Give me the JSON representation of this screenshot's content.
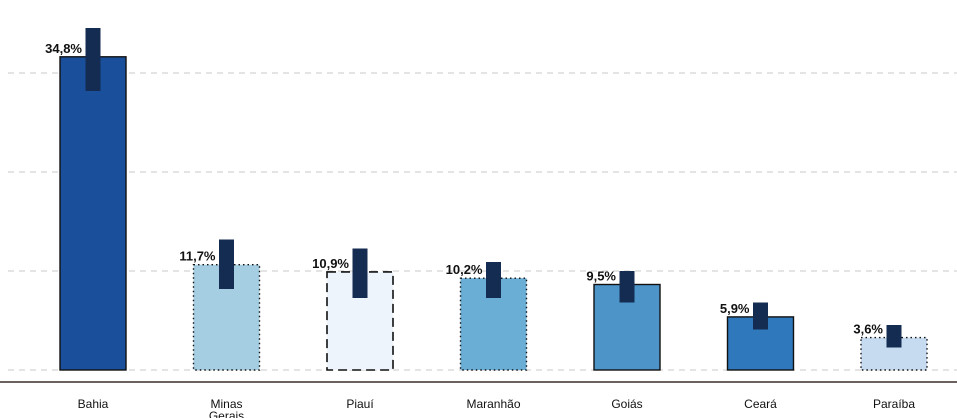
{
  "chart_data": {
    "type": "bar",
    "title": "",
    "xlabel": "",
    "ylabel": "",
    "ylim": [
      0,
      37
    ],
    "grid": true,
    "categories": [
      "Bahia",
      "Minas Gerais",
      "Piauí",
      "Maranhão",
      "Goiás",
      "Ceará",
      "Paraíba"
    ],
    "values": [
      34.8,
      11.7,
      10.9,
      10.2,
      9.5,
      5.9,
      3.6
    ],
    "value_labels": [
      "34,8%",
      "11,7%",
      "10,9%",
      "10,2%",
      "9,5%",
      "5,9%",
      "3,6%"
    ],
    "error_bars": [
      {
        "low": 31.0,
        "high": 38.0
      },
      {
        "low": 9.0,
        "high": 14.5
      },
      {
        "low": 8.0,
        "high": 13.5
      },
      {
        "low": 8.0,
        "high": 12.0
      },
      {
        "low": 7.5,
        "high": 11.0
      },
      {
        "low": 4.5,
        "high": 7.5
      },
      {
        "low": 2.5,
        "high": 5.0
      }
    ],
    "colors": [
      "#1a4f9c",
      "#a6cee3",
      "#eef4fc",
      "#6aadd5",
      "#4d94c9",
      "#2f78bb",
      "#c6dbef"
    ],
    "bar_outlines": [
      "solid",
      "dotted",
      "dashed",
      "dotted",
      "solid",
      "solid",
      "dotted"
    ],
    "error_color": "#142c52"
  }
}
